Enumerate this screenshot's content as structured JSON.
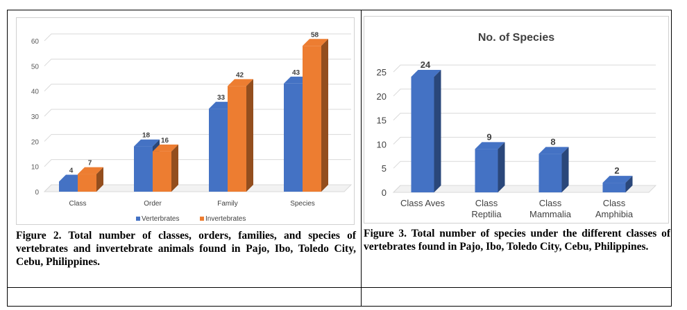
{
  "chart_data": [
    {
      "type": "bar",
      "title": "",
      "categories": [
        "Class",
        "Order",
        "Family",
        "Species"
      ],
      "series": [
        {
          "name": "Verterbrates",
          "values": [
            4,
            18,
            33,
            43
          ],
          "color": "#4472c4"
        },
        {
          "name": "Invertebrates",
          "values": [
            7,
            16,
            42,
            58
          ],
          "color": "#ed7d31"
        }
      ],
      "ylim": [
        0,
        60
      ],
      "yticks": [
        "0",
        "10",
        "20",
        "30",
        "40",
        "50",
        "60"
      ],
      "grid": true,
      "legend": "bottom"
    },
    {
      "type": "bar",
      "title": "No. of Species",
      "categories": [
        [
          "Class Aves"
        ],
        [
          "Class",
          "Reptilia"
        ],
        [
          "Class",
          "Mammalia"
        ],
        [
          "Class",
          "Amphibia"
        ]
      ],
      "series": [
        {
          "name": "",
          "values": [
            24,
            9,
            8,
            2
          ],
          "color": "#4472c4"
        }
      ],
      "ylim": [
        0,
        25
      ],
      "yticks": [
        "0",
        "5",
        "10",
        "15",
        "20",
        "25"
      ],
      "grid": true,
      "legend": "none"
    }
  ],
  "captions": {
    "figure2": "Figure 2. Total number of classes, orders, families, and species of vertebrates and invertebrate animals found in Pajo, Ibo, Toledo City, Cebu, Philippines.",
    "figure3": "Figure 3. Total number of species under the different classes of vertebrates found in Pajo, Ibo, Toledo City, Cebu, Philippines."
  }
}
